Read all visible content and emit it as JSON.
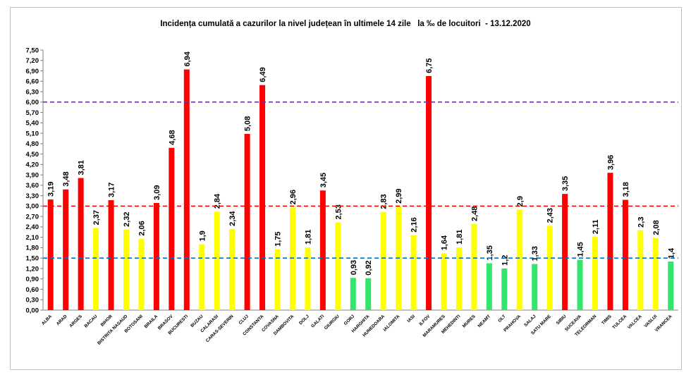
{
  "chart_data": {
    "type": "bar",
    "title": "Incidența cumulată a cazurilor la nivel județean în ultimele 14 zile   la ‰ de locuitori  - 13.12.2020",
    "xlabel": "",
    "ylabel": "",
    "ylim": [
      0,
      7.5
    ],
    "ytick_labels": [
      "0,00",
      "0,30",
      "0,60",
      "0,90",
      "1,20",
      "1,50",
      "1,80",
      "2,10",
      "2,40",
      "2,70",
      "3,00",
      "3,30",
      "3,60",
      "3,90",
      "4,20",
      "4,50",
      "4,80",
      "5,10",
      "5,40",
      "5,70",
      "6,00",
      "6,30",
      "6,60",
      "6,90",
      "7,20",
      "7,50"
    ],
    "categories": [
      "ALBA",
      "ARAD",
      "ARGES",
      "BACAU",
      "BIHOR",
      "BISTRITA NASAUD",
      "BOTOSANI",
      "BRAILA",
      "BRASOV",
      "BUCURESTI",
      "BUZAU",
      "CALARASI",
      "CARAS-SEVERIN",
      "CLUJ",
      "CONSTANTA",
      "COVASNA",
      "DAMBOVITA",
      "DOLJ",
      "GALATI",
      "GIURGIU",
      "GORJ",
      "HARGHITA",
      "HUNEDOARA",
      "IALOMITA",
      "IASI",
      "ILFOV",
      "MARAMURES",
      "MEHEDINTI",
      "MURES",
      "NEAMT",
      "OLT",
      "PRAHOVA",
      "SALAJ",
      "SATU MARE",
      "SIBIU",
      "SUCEAVA",
      "TELEORMAN",
      "TIMIS",
      "TULCEA",
      "VALCEA",
      "VASLUI",
      "VRANCEA"
    ],
    "values": [
      3.19,
      3.48,
      3.81,
      2.37,
      3.17,
      2.32,
      2.06,
      3.09,
      4.68,
      6.94,
      1.9,
      2.84,
      2.34,
      5.08,
      6.49,
      1.75,
      2.96,
      1.81,
      3.45,
      2.53,
      0.93,
      0.92,
      2.83,
      2.99,
      2.16,
      6.75,
      1.64,
      1.81,
      2.48,
      1.35,
      1.2,
      2.9,
      1.33,
      2.43,
      3.35,
      1.45,
      2.11,
      3.96,
      3.18,
      2.3,
      2.08,
      1.4
    ],
    "value_labels": [
      "3,19",
      "3,48",
      "3,81",
      "2,37",
      "3,17",
      "2,32",
      "2,06",
      "3,09",
      "4,68",
      "6,94",
      "1,9",
      "2,84",
      "2,34",
      "5,08",
      "6,49",
      "1,75",
      "2,96",
      "1,81",
      "3,45",
      "2,53",
      "0,93",
      "0,92",
      "2,83",
      "2,99",
      "2,16",
      "6,75",
      "1,64",
      "1,81",
      "2,48",
      "1,35",
      "1,2",
      "2,9",
      "1,33",
      "2,43",
      "3,35",
      "1,45",
      "2,11",
      "3,96",
      "3,18",
      "2,3",
      "2,08",
      "1,4"
    ],
    "bar_colors": [
      "#ff0000",
      "#ff0000",
      "#ff0000",
      "#ffff00",
      "#ff0000",
      "#ffff00",
      "#ffff00",
      "#ff0000",
      "#ff0000",
      "#ff0000",
      "#ffff00",
      "#ffff00",
      "#ffff00",
      "#ff0000",
      "#ff0000",
      "#ffff00",
      "#ffff00",
      "#ffff00",
      "#ff0000",
      "#ffff00",
      "#33e66b",
      "#33e66b",
      "#ffff00",
      "#ffff00",
      "#ffff00",
      "#ff0000",
      "#ffff00",
      "#ffff00",
      "#ffff00",
      "#33e66b",
      "#33e66b",
      "#ffff00",
      "#33e66b",
      "#ffff00",
      "#ff0000",
      "#33e66b",
      "#ffff00",
      "#ff0000",
      "#ff0000",
      "#ffff00",
      "#ffff00",
      "#33e66b"
    ],
    "thresholds": [
      {
        "name": "threshold-6",
        "value": 6.0,
        "color": "#7030a0"
      },
      {
        "name": "threshold-3",
        "value": 3.0,
        "color": "#ff0000"
      },
      {
        "name": "threshold-1-5",
        "value": 1.5,
        "color": "#0070c0"
      }
    ],
    "grid": false,
    "legend": "none"
  }
}
